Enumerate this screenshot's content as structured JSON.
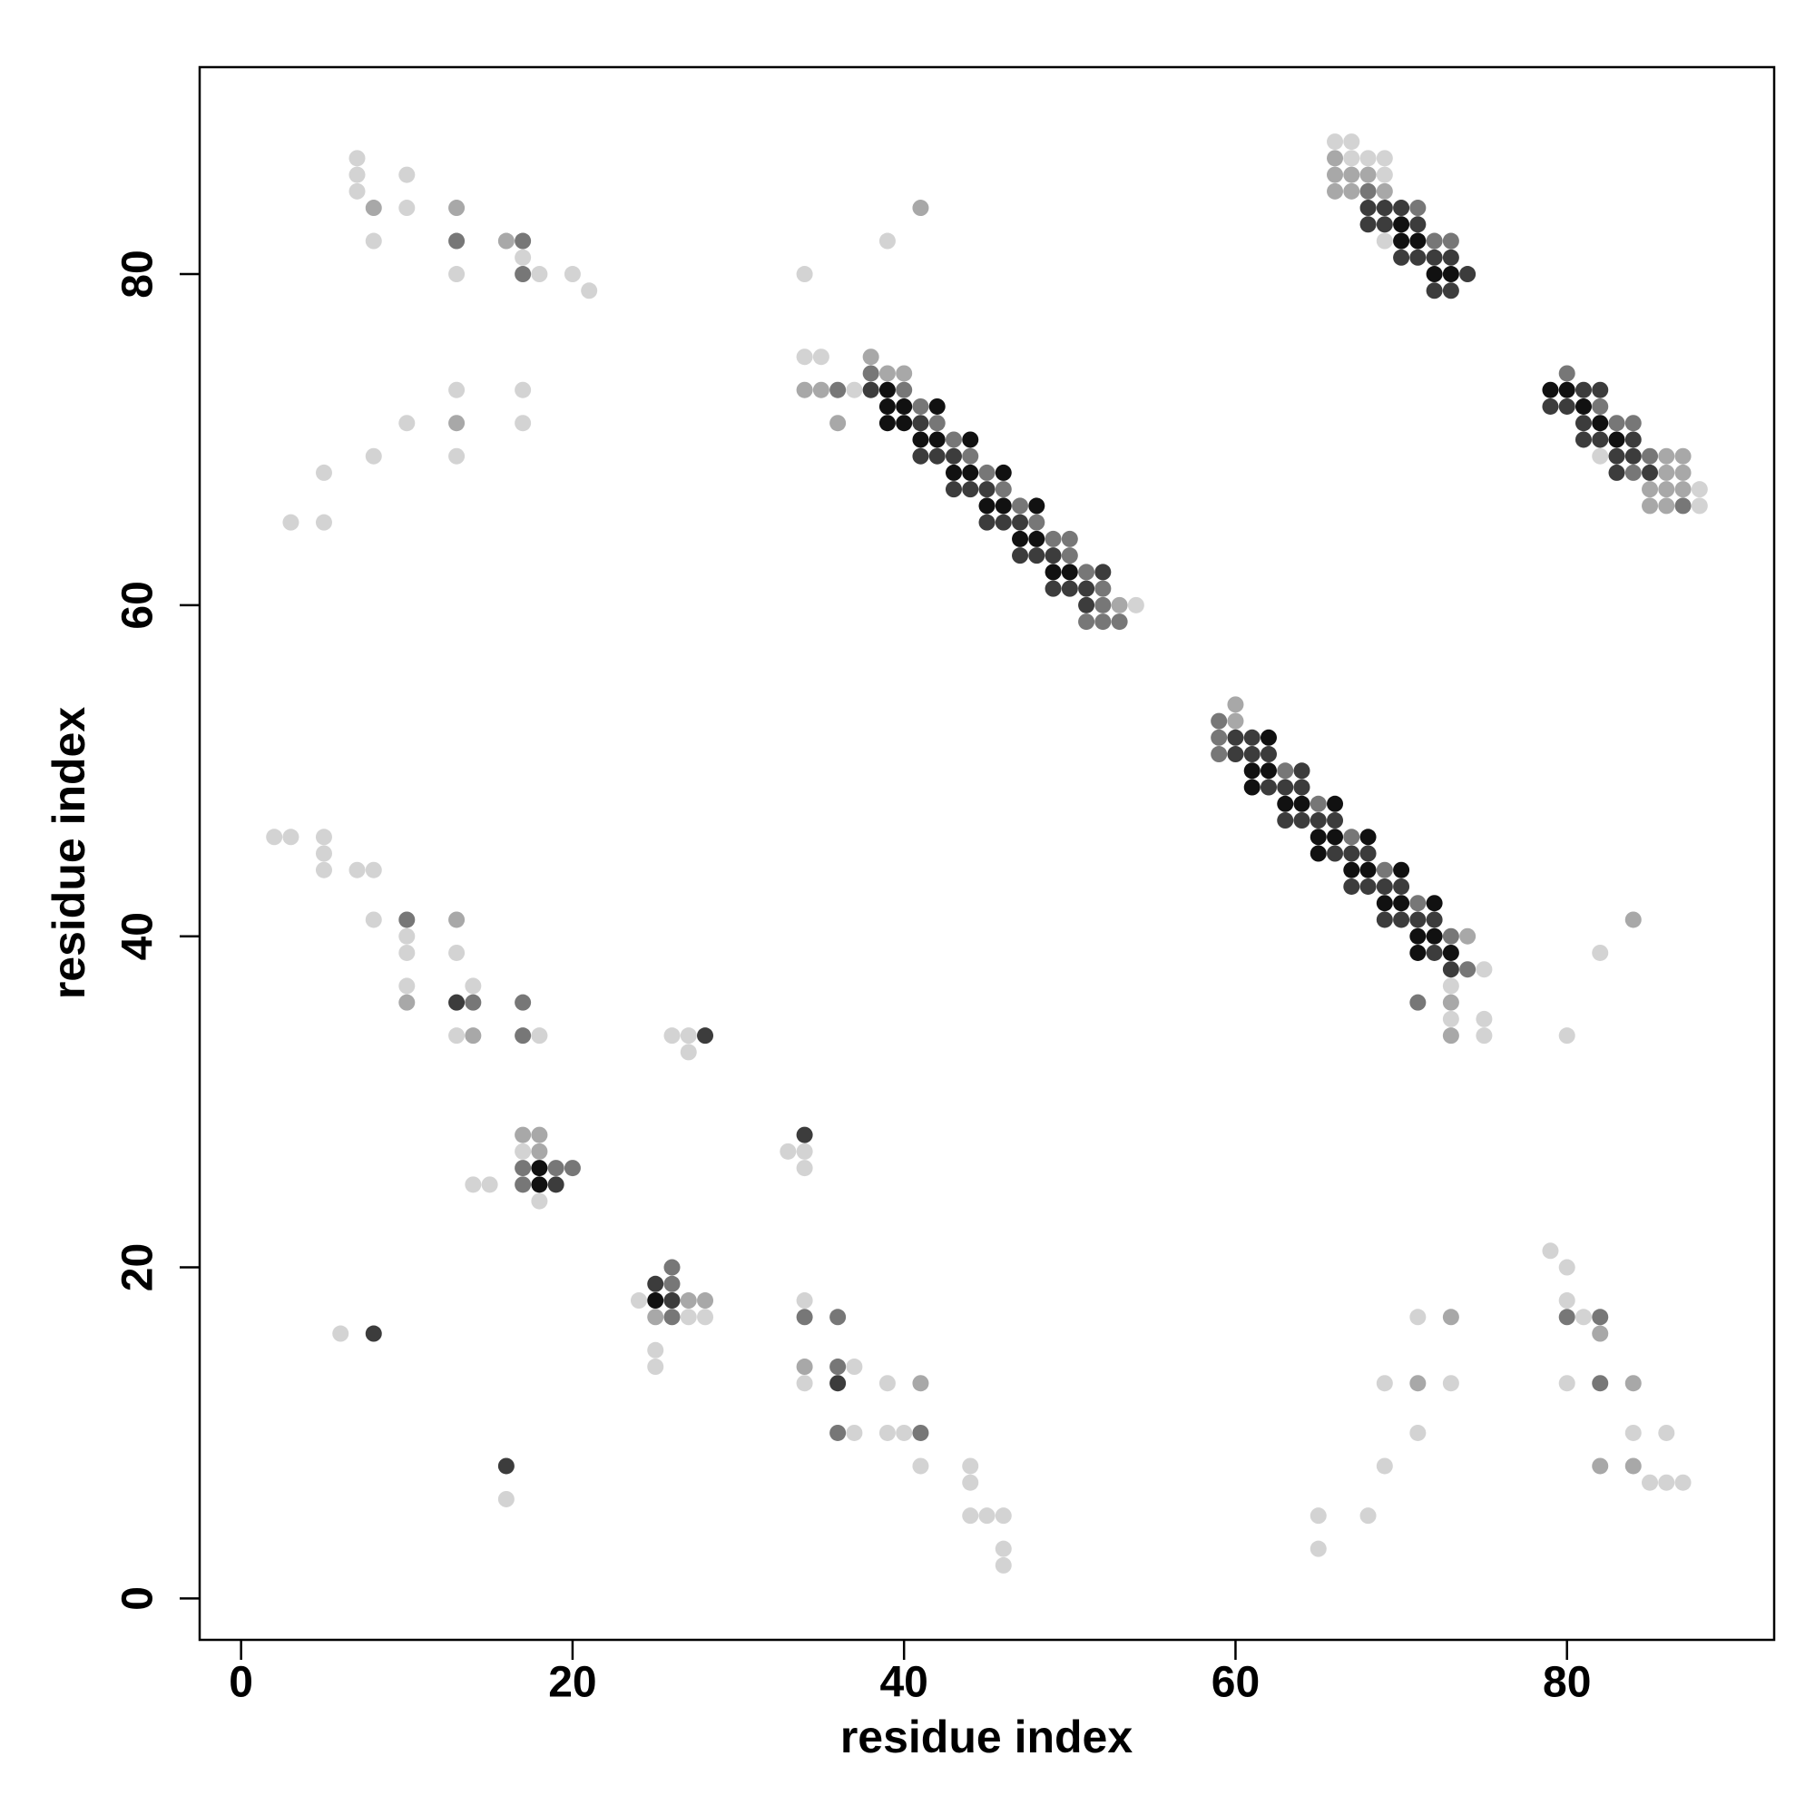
{
  "chart_data": {
    "type": "scatter",
    "xlabel": "residue index",
    "ylabel": "residue index",
    "xlim": [
      -2.5,
      92.5
    ],
    "ylim": [
      -2.5,
      92.5
    ],
    "xticks": [
      0,
      20,
      40,
      60,
      80
    ],
    "yticks": [
      0,
      20,
      40,
      60,
      80
    ],
    "series": [
      {
        "color": "#d3d3d3",
        "x": [
          7,
          7,
          7,
          10,
          10,
          8,
          13,
          17,
          18,
          20,
          21,
          13,
          17,
          10,
          17,
          8,
          13,
          5,
          3,
          5,
          2,
          3,
          5,
          5,
          5,
          7,
          8,
          8,
          10,
          10,
          13,
          10,
          14,
          13,
          18,
          26,
          27,
          27,
          17,
          14,
          15,
          18,
          33,
          34,
          34,
          24,
          27,
          28,
          25,
          25,
          6,
          34,
          37,
          34,
          39,
          37,
          39,
          40,
          41,
          44,
          44,
          44,
          45,
          46,
          46,
          46,
          16,
          65,
          65,
          68,
          69,
          69,
          73,
          71,
          71,
          79,
          80,
          80,
          81,
          80,
          84,
          86,
          85,
          86,
          87,
          80,
          82,
          34,
          39,
          34,
          35,
          37,
          54,
          75,
          73,
          73,
          75,
          75,
          66,
          67,
          67,
          68,
          69,
          69,
          69,
          82,
          88,
          88
        ],
        "y": [
          87,
          86,
          85,
          86,
          84,
          82,
          80,
          81,
          80,
          80,
          79,
          73,
          73,
          71,
          71,
          69,
          69,
          68,
          65,
          65,
          46,
          46,
          46,
          45,
          44,
          44,
          44,
          41,
          40,
          39,
          39,
          37,
          37,
          34,
          34,
          34,
          34,
          33,
          27,
          25,
          25,
          24,
          27,
          27,
          26,
          18,
          17,
          17,
          15,
          14,
          16,
          18,
          14,
          13,
          13,
          10,
          10,
          10,
          8,
          8,
          7,
          5,
          5,
          5,
          3,
          2,
          6,
          5,
          3,
          5,
          8,
          13,
          13,
          10,
          17,
          21,
          20,
          18,
          17,
          13,
          10,
          10,
          7,
          7,
          7,
          34,
          39,
          80,
          82,
          75,
          75,
          73,
          60,
          38,
          37,
          35,
          35,
          34,
          88,
          88,
          87,
          87,
          87,
          86,
          82,
          69,
          67,
          66
        ]
      },
      {
        "color": "#a8a8a8",
        "x": [
          8,
          13,
          16,
          13,
          13,
          10,
          14,
          17,
          18,
          18,
          27,
          28,
          25,
          34,
          41,
          71,
          73,
          82,
          84,
          82,
          84,
          84,
          41,
          38,
          39,
          40,
          34,
          35,
          36,
          53,
          60,
          60,
          74,
          73,
          73,
          66,
          66,
          67,
          68,
          66,
          67,
          69,
          86,
          87,
          86,
          87,
          85,
          86,
          87,
          85,
          86
        ],
        "y": [
          84,
          84,
          82,
          71,
          41,
          36,
          34,
          28,
          28,
          27,
          18,
          18,
          17,
          14,
          13,
          13,
          17,
          16,
          13,
          8,
          8,
          41,
          84,
          75,
          74,
          74,
          73,
          73,
          71,
          60,
          54,
          53,
          40,
          36,
          34,
          87,
          86,
          86,
          86,
          85,
          85,
          85,
          69,
          69,
          68,
          68,
          67,
          67,
          67,
          66,
          66
        ]
      },
      {
        "color": "#777777",
        "x": [
          13,
          17,
          17,
          10,
          14,
          17,
          17,
          17,
          19,
          20,
          17,
          26,
          26,
          26,
          34,
          36,
          36,
          36,
          41,
          80,
          82,
          82,
          38,
          36,
          40,
          41,
          42,
          43,
          44,
          45,
          46,
          47,
          48,
          49,
          50,
          50,
          51,
          52,
          52,
          51,
          52,
          53,
          59,
          59,
          59,
          63,
          65,
          67,
          69,
          71,
          73,
          74,
          71,
          68,
          71,
          72,
          73,
          80,
          82,
          83,
          84,
          85,
          84,
          87
        ],
        "y": [
          82,
          82,
          80,
          41,
          36,
          36,
          34,
          26,
          26,
          26,
          25,
          19,
          20,
          17,
          17,
          17,
          14,
          10,
          10,
          17,
          17,
          13,
          74,
          73,
          73,
          72,
          71,
          70,
          69,
          68,
          67,
          66,
          65,
          64,
          64,
          63,
          62,
          61,
          60,
          59,
          59,
          59,
          53,
          52,
          51,
          50,
          48,
          46,
          44,
          42,
          40,
          38,
          36,
          85,
          84,
          82,
          82,
          74,
          72,
          71,
          71,
          69,
          68,
          66
        ]
      },
      {
        "color": "#3c3c3c",
        "x": [
          13,
          28,
          19,
          34,
          25,
          26,
          8,
          36,
          16,
          38,
          41,
          41,
          42,
          43,
          43,
          44,
          45,
          45,
          46,
          47,
          47,
          48,
          49,
          52,
          49,
          50,
          51,
          51,
          60,
          61,
          60,
          61,
          62,
          64,
          62,
          63,
          64,
          63,
          64,
          65,
          66,
          66,
          67,
          68,
          67,
          68,
          69,
          70,
          69,
          70,
          71,
          72,
          72,
          73,
          68,
          69,
          70,
          68,
          69,
          71,
          70,
          71,
          72,
          73,
          74,
          72,
          73,
          81,
          82,
          79,
          80,
          81,
          81,
          82,
          84,
          83,
          84,
          83,
          85
        ],
        "y": [
          36,
          34,
          25,
          28,
          19,
          18,
          16,
          13,
          8,
          73,
          71,
          69,
          69,
          69,
          67,
          67,
          67,
          65,
          65,
          65,
          63,
          63,
          63,
          62,
          61,
          61,
          61,
          60,
          52,
          52,
          51,
          51,
          51,
          50,
          49,
          49,
          49,
          47,
          47,
          47,
          47,
          45,
          45,
          45,
          43,
          43,
          43,
          43,
          41,
          41,
          41,
          41,
          39,
          38,
          84,
          84,
          84,
          83,
          83,
          83,
          81,
          81,
          81,
          81,
          80,
          79,
          79,
          73,
          73,
          72,
          72,
          71,
          70,
          70,
          70,
          69,
          69,
          68,
          68
        ]
      },
      {
        "color": "#111111",
        "x": [
          18,
          18,
          25,
          39,
          39,
          40,
          42,
          39,
          40,
          41,
          42,
          44,
          43,
          44,
          46,
          45,
          46,
          48,
          47,
          48,
          49,
          50,
          62,
          61,
          62,
          61,
          63,
          64,
          66,
          65,
          66,
          68,
          65,
          67,
          68,
          70,
          69,
          70,
          72,
          71,
          72,
          71,
          73,
          70,
          70,
          71,
          72,
          73,
          79,
          80,
          81,
          82,
          83
        ],
        "y": [
          26,
          25,
          18,
          73,
          72,
          72,
          72,
          71,
          71,
          70,
          70,
          70,
          68,
          68,
          68,
          66,
          66,
          66,
          64,
          64,
          62,
          62,
          52,
          50,
          50,
          49,
          48,
          48,
          48,
          46,
          46,
          46,
          45,
          44,
          44,
          44,
          42,
          42,
          42,
          40,
          40,
          39,
          39,
          83,
          82,
          82,
          80,
          80,
          73,
          73,
          72,
          71,
          70
        ]
      }
    ]
  }
}
